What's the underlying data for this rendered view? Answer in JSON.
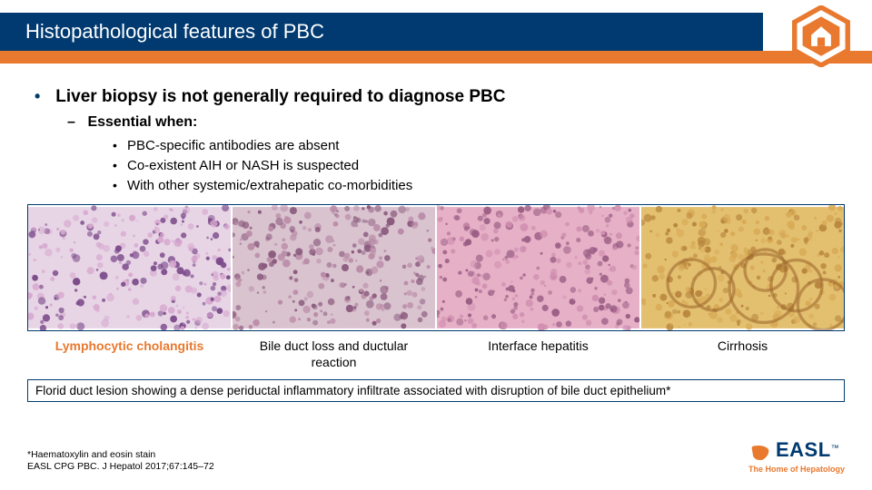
{
  "colors": {
    "brand_blue": "#003a70",
    "accent_orange": "#e8792f",
    "white": "#ffffff",
    "text": "#000000"
  },
  "header": {
    "title": "Histopathological features of PBC"
  },
  "bullets": {
    "lvl1": "Liver biopsy is not generally required to diagnose PBC",
    "lvl2": "Essential when:",
    "lvl3": [
      "PBC-specific antibodies are absent",
      "Co-existent AIH or NASH is suspected",
      "With other systemic/extrahepatic co-morbidities"
    ]
  },
  "images": [
    {
      "caption": "Lymphocytic cholangitis",
      "highlight": true,
      "bg": "#e7d5e6",
      "dot": "#7b4a8a",
      "dot2": "#d7a9cf"
    },
    {
      "caption": "Bile duct loss and ductular reaction",
      "highlight": false,
      "bg": "#d9c3cf",
      "dot": "#8a5a7d",
      "dot2": "#b98aa6"
    },
    {
      "caption": "Interface hepatitis",
      "highlight": false,
      "bg": "#e6b0c6",
      "dot": "#9a5d84",
      "dot2": "#d08fb0"
    },
    {
      "caption": "Cirrhosis",
      "highlight": false,
      "bg": "#e3c070",
      "dot": "#b8863e",
      "dot2": "#d8aa56"
    }
  ],
  "florid": "Florid duct lesion showing a dense periductal inflammatory infiltrate associated with disruption of bile duct epithelium*",
  "footnotes": [
    "*Haematoxylin and eosin stain",
    "EASL CPG PBC. J Hepatol 2017;67:145–72"
  ],
  "logo": {
    "brand": "EASL",
    "tag": "The Home of Hepatology"
  }
}
